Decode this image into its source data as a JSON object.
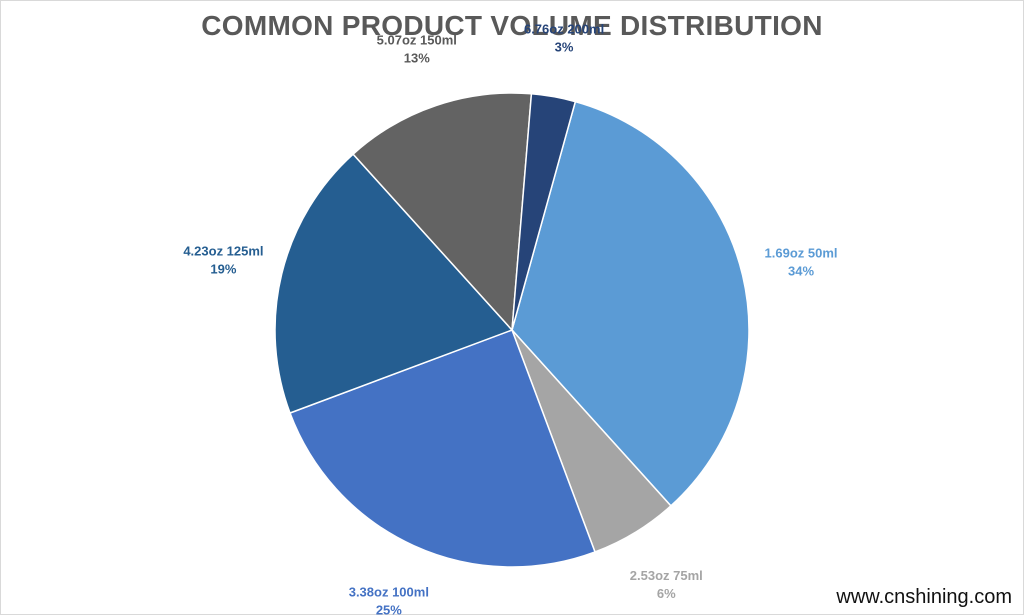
{
  "chart_data": {
    "type": "pie",
    "title": "COMMON PRODUCT VOLUME DISTRIBUTION",
    "slices": [
      {
        "name": "1.69oz 50ml",
        "value": 34,
        "label": "34%",
        "color": "#5B9BD5",
        "label_color": "#5B9BD5"
      },
      {
        "name": "2.53oz 75ml",
        "value": 6,
        "label": "6%",
        "color": "#A5A5A5",
        "label_color": "#A5A5A5"
      },
      {
        "name": "3.38oz 100ml",
        "value": 25,
        "label": "25%",
        "color": "#4472C4",
        "label_color": "#4472C4"
      },
      {
        "name": "4.23oz 125ml",
        "value": 19,
        "label": "19%",
        "color": "#255E91",
        "label_color": "#255E91"
      },
      {
        "name": "5.07oz 150ml",
        "value": 13,
        "label": "13%",
        "color": "#636363",
        "label_color": "#595959"
      },
      {
        "name": "6.76oz 200ml",
        "value": 3,
        "label": "3%",
        "color": "#264478",
        "label_color": "#264478"
      }
    ],
    "legend": "none"
  },
  "watermark": "www.cnshining.com"
}
